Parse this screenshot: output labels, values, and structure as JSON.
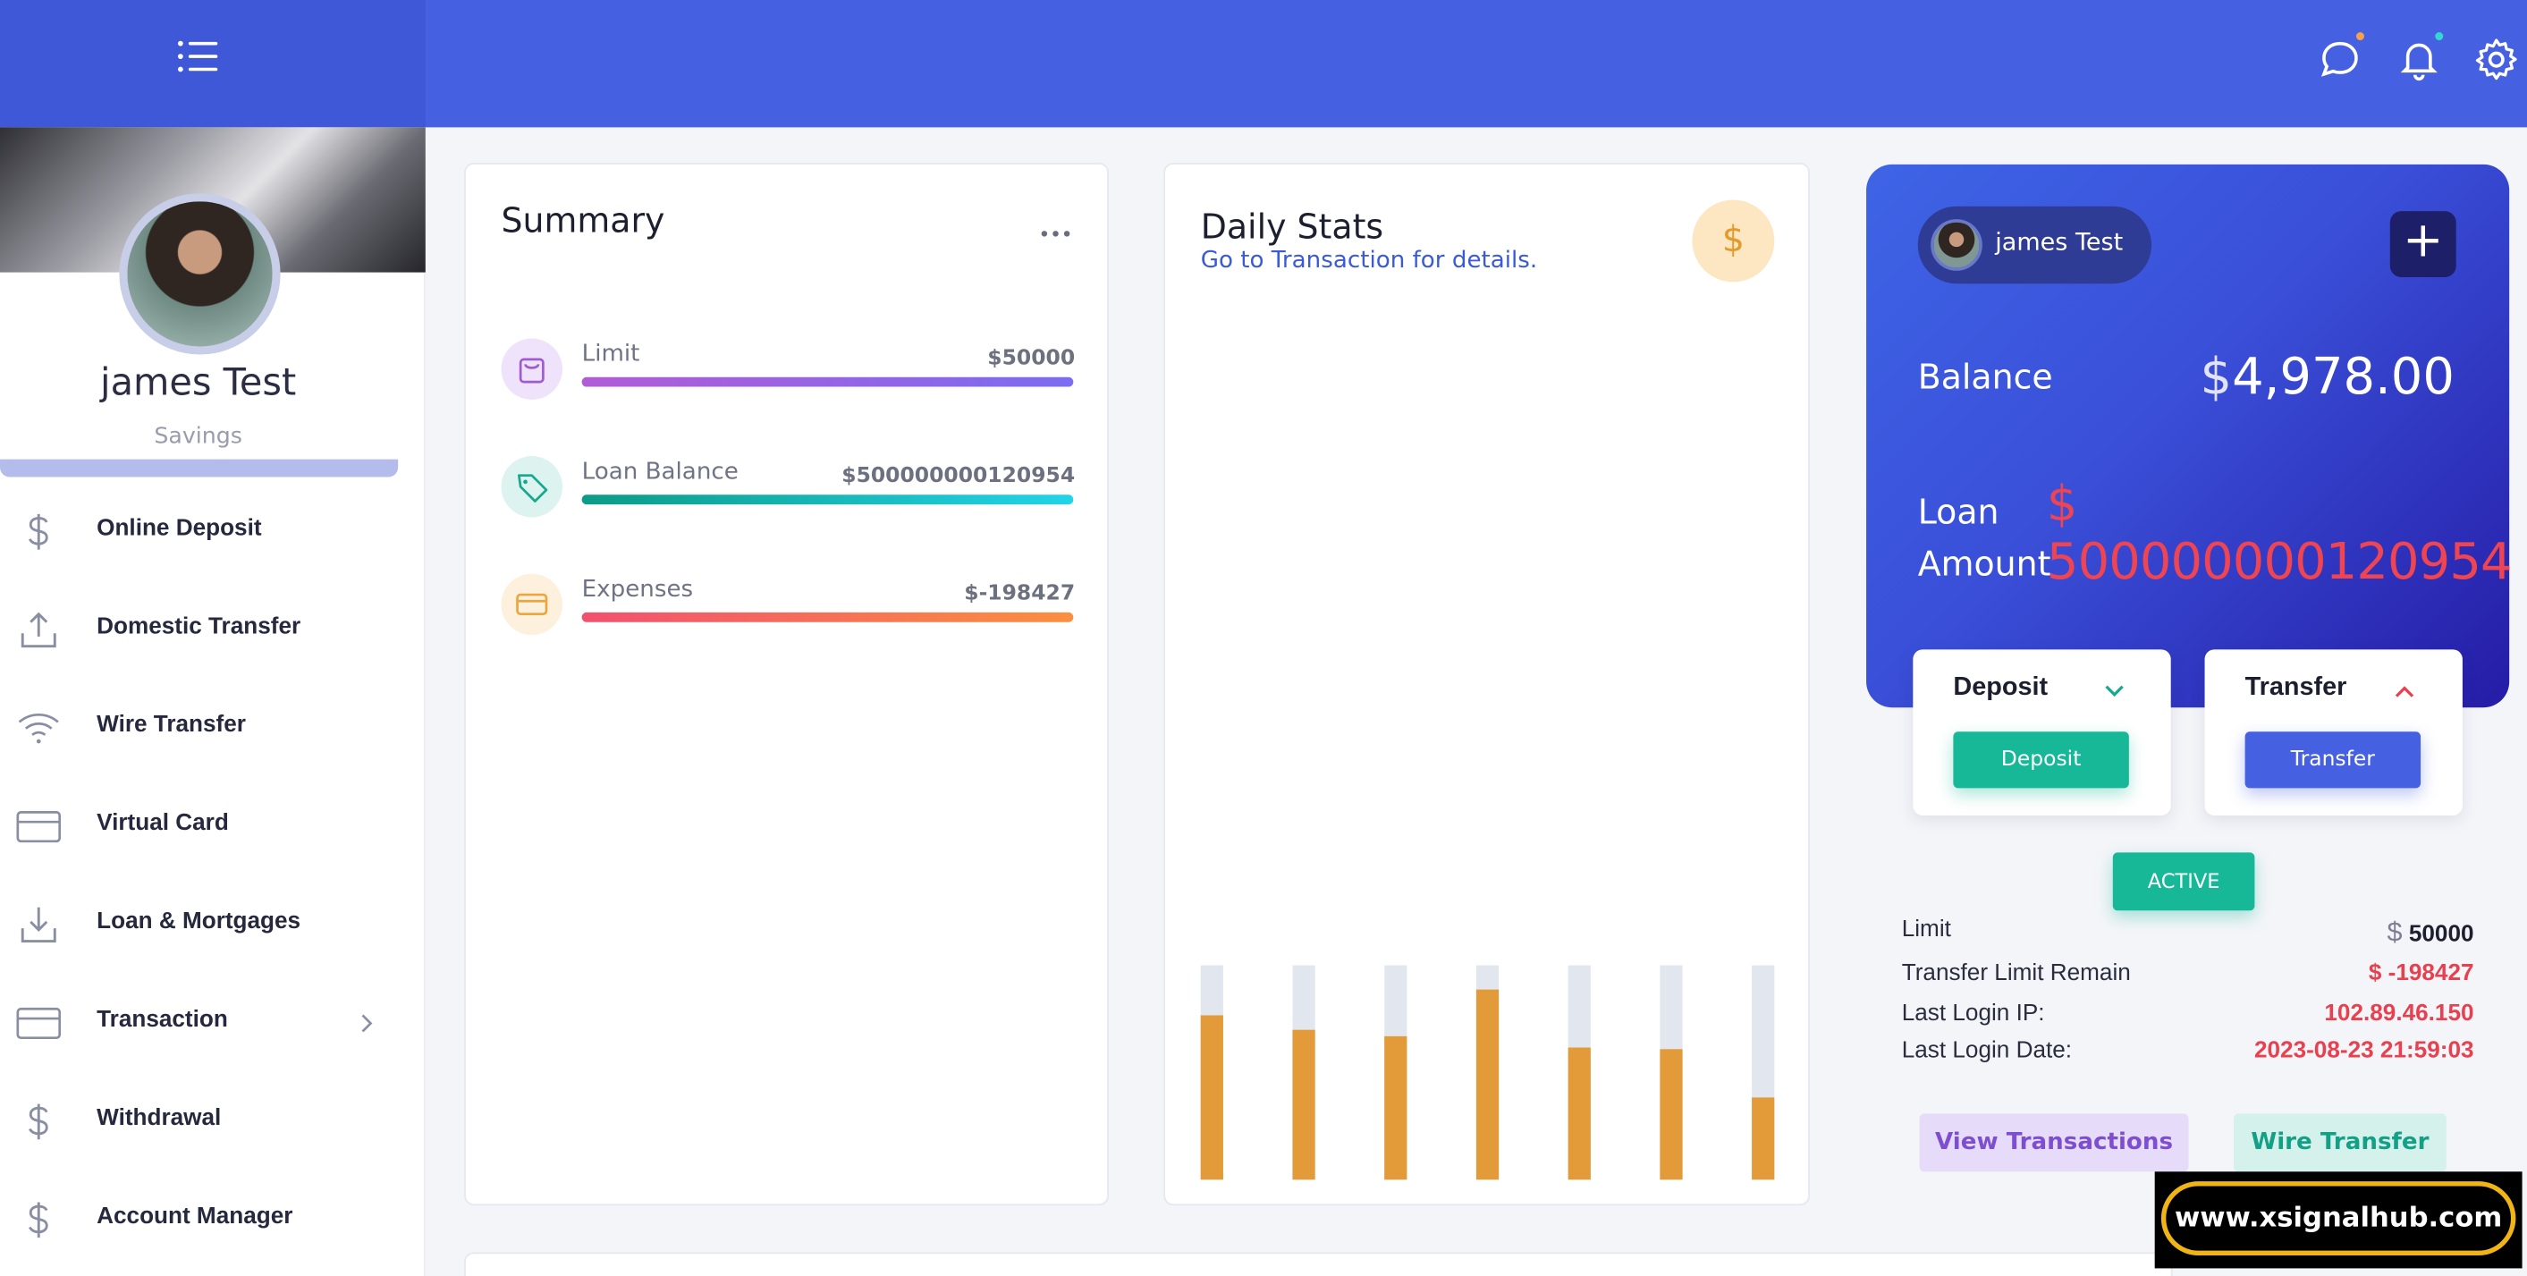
{
  "header": {
    "menu_icon": "list-icon",
    "chat_icon": "chat-icon",
    "bell_icon": "bell-icon",
    "settings_icon": "gear-icon"
  },
  "profile": {
    "name": "james Test",
    "account_type": "Savings"
  },
  "sidebar": {
    "items": [
      {
        "label": "Online Deposit",
        "icon": "dollar-icon"
      },
      {
        "label": "Domestic Transfer",
        "icon": "upload-icon"
      },
      {
        "label": "Wire Transfer",
        "icon": "wifi-icon"
      },
      {
        "label": "Virtual Card",
        "icon": "card-icon"
      },
      {
        "label": "Loan & Mortgages",
        "icon": "download-icon"
      },
      {
        "label": "Transaction",
        "icon": "card-icon"
      },
      {
        "label": "Withdrawal",
        "icon": "dollar-icon"
      },
      {
        "label": "Account Manager",
        "icon": "dollar-icon"
      }
    ]
  },
  "summary": {
    "title": "Summary",
    "rows": [
      {
        "label": "Limit",
        "value": "$50000",
        "color_from": "#b15cd6",
        "color_to": "#7c6cf0"
      },
      {
        "label": "Loan Balance",
        "value": "$500000000120954",
        "color_from": "#0c9b86",
        "color_to": "#22d4e8"
      },
      {
        "label": "Expenses",
        "value": "$-198427",
        "color_from": "#f2506f",
        "color_to": "#fb8f3f"
      }
    ]
  },
  "daily_stats": {
    "title": "Daily Stats",
    "subtitle": "Go to Transaction for details.",
    "badge": "$"
  },
  "chart_data": {
    "type": "bar",
    "values": [
      0.77,
      0.7,
      0.67,
      0.89,
      0.62,
      0.61,
      0.38
    ]
  },
  "account_card": {
    "user_name": "james Test",
    "balance_label": "Balance",
    "balance_symbol": "$",
    "balance_value": "4,978.00",
    "loan_label_line1": "Loan",
    "loan_label_line2": "Amount",
    "loan_symbol": "$",
    "loan_value": "500000000120954",
    "add_symbol": "+"
  },
  "actions": {
    "deposit_title": "Deposit",
    "deposit_button": "Deposit",
    "transfer_title": "Transfer",
    "transfer_button": "Transfer",
    "status": "ACTIVE"
  },
  "info": {
    "limit_label": "Limit",
    "limit_symbol": "$",
    "limit_value": "50000",
    "transfer_remain_label": "Transfer Limit Remain",
    "transfer_remain_value": "$ -198427",
    "ip_label": "Last Login IP:",
    "ip_value": "102.89.46.150",
    "date_label": "Last Login Date:",
    "date_value": "2023-08-23 21:59:03"
  },
  "buttons": {
    "view_transactions": "View Transactions",
    "wire_transfer": "Wire Transfer"
  },
  "watermark": "www.xsignalhub.com",
  "colors": {
    "primary": "#4560e0",
    "accent_green": "#17b897",
    "danger": "#e8404f",
    "chart_bar": "#e39b3a"
  }
}
